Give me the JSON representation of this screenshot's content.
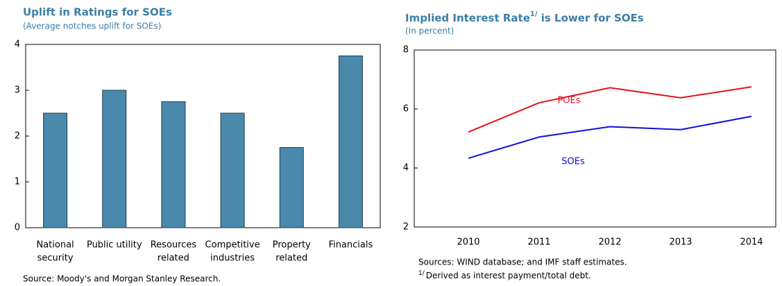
{
  "chart_data": [
    {
      "type": "bar",
      "title": "Uplift in Ratings for SOEs",
      "subtitle": "(Average notches uplift for SOEs)",
      "categories": [
        [
          "National",
          "security"
        ],
        [
          "Public utility"
        ],
        [
          "Resources",
          "related"
        ],
        [
          "Competitive",
          "industries"
        ],
        [
          "Property",
          "related"
        ],
        [
          "Financials"
        ]
      ],
      "values": [
        2.5,
        3,
        2.75,
        2.5,
        1.75,
        3.75
      ],
      "color": "#4a89ab",
      "ylim": [
        0,
        4
      ],
      "yticks": [
        0,
        1,
        2,
        3,
        4
      ],
      "source": "Source: Moody's and Morgan Stanley Research."
    },
    {
      "type": "line",
      "title": [
        "Implied Interest Rate",
        "1/",
        " is Lower for SOEs"
      ],
      "subtitle": "(In percent)",
      "categories": [
        "2010",
        "2011",
        "2012",
        "2013",
        "2014"
      ],
      "series": [
        {
          "name": "POEs",
          "color": "#e8101a",
          "values": [
            5.22,
            6.21,
            6.72,
            6.38,
            6.75
          ]
        },
        {
          "name": "SOEs",
          "color": "#1010e0",
          "values": [
            4.33,
            5.05,
            5.4,
            5.3,
            5.75
          ]
        }
      ],
      "ylim": [
        2,
        8
      ],
      "yticks": [
        2,
        4,
        6,
        8
      ],
      "source": "Sources: WIND database; and IMF staff estimates.",
      "note": [
        "1/",
        "Derived as interest payment/total debt."
      ]
    }
  ]
}
